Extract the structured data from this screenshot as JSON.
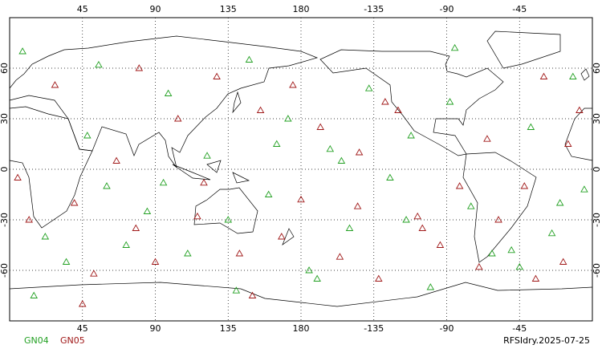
{
  "chart_data": {
    "type": "scatter",
    "xlim": [
      0,
      360
    ],
    "ylim": [
      -90,
      90
    ],
    "xticks": [
      45,
      90,
      135,
      180,
      {
        "value": 225,
        "label": "-135"
      },
      {
        "value": 270,
        "label": "-90"
      },
      {
        "value": 315,
        "label": "-45"
      }
    ],
    "yticks": [
      -60,
      -30,
      0,
      30,
      60
    ],
    "grid": true,
    "annotation": "RFSIdry.2025-07-25",
    "series": [
      {
        "name": "GN04",
        "color": "#22a022",
        "x": [
          8,
          22,
          35,
          48,
          60,
          72,
          85,
          98,
          110,
          122,
          135,
          148,
          160,
          172,
          185,
          198,
          210,
          222,
          235,
          248,
          260,
          272,
          285,
          298,
          310,
          322,
          335,
          348,
          355,
          15,
          55,
          95,
          140,
          165,
          205,
          245,
          275,
          315,
          340,
          190
        ],
        "values": [
          70,
          -40,
          -55,
          20,
          -10,
          -45,
          -25,
          45,
          -50,
          8,
          -30,
          65,
          -15,
          30,
          -60,
          12,
          -35,
          48,
          -5,
          20,
          -70,
          40,
          -22,
          -50,
          -48,
          25,
          -38,
          55,
          -12,
          -75,
          62,
          -8,
          -72,
          15,
          5,
          -30,
          72,
          -58,
          -20,
          -65
        ]
      },
      {
        "name": "GN05",
        "color": "#a01818",
        "x": [
          12,
          28,
          40,
          52,
          66,
          78,
          90,
          104,
          116,
          128,
          142,
          155,
          168,
          180,
          192,
          204,
          216,
          228,
          240,
          252,
          266,
          278,
          290,
          302,
          318,
          330,
          342,
          352,
          5,
          45,
          80,
          120,
          150,
          175,
          215,
          255,
          295,
          325,
          345,
          232
        ],
        "values": [
          -30,
          50,
          -20,
          -62,
          5,
          -35,
          -55,
          30,
          -28,
          55,
          -50,
          35,
          -40,
          -18,
          25,
          -52,
          10,
          -65,
          35,
          -28,
          -45,
          -10,
          -58,
          -30,
          -10,
          55,
          -55,
          35,
          -5,
          -80,
          60,
          -8,
          -75,
          50,
          -22,
          -35,
          18,
          -65,
          15,
          40
        ]
      }
    ]
  }
}
